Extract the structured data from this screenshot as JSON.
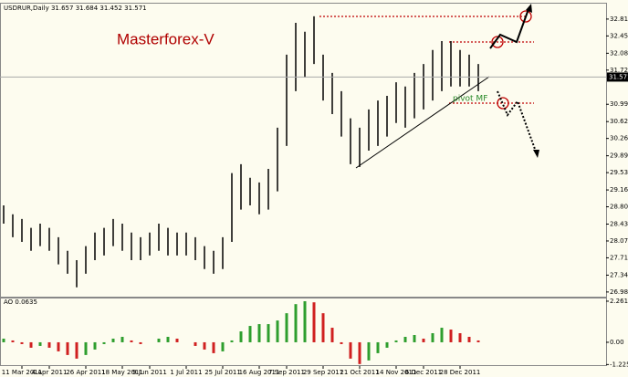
{
  "chart_data": [
    {
      "type": "ohlc",
      "header": "USDRUR,Daily  31.657 31.684 31.452 31.571",
      "title": "Masterforex-V",
      "annotation": "pivot MF",
      "categories": [
        null,
        null,
        "11 Mar 2011",
        null,
        null,
        "4 Apr 2011",
        null,
        null,
        null,
        "26 Apr 2011",
        null,
        null,
        null,
        "18 May 2011",
        null,
        null,
        "9 Jun 2011",
        null,
        null,
        null,
        "1 Jul 2011",
        null,
        null,
        null,
        "25 Jul 2011",
        null,
        null,
        null,
        "16 Aug 2011",
        null,
        null,
        "7 Sep 2011",
        null,
        null,
        null,
        "29 Sep 2011",
        null,
        null,
        null,
        "21 Oct 2011",
        null,
        null,
        null,
        "14 Nov 2011",
        null,
        null,
        "6 Dec 2011",
        null,
        null,
        null,
        "28 Dec 2011",
        null,
        null
      ],
      "series": [
        {
          "name": "high",
          "color": "#000000",
          "values": [
            28.83,
            28.64,
            28.54,
            28.35,
            28.44,
            28.35,
            28.15,
            27.86,
            27.66,
            27.96,
            28.25,
            28.35,
            28.54,
            28.44,
            28.25,
            28.15,
            28.25,
            28.44,
            28.35,
            28.25,
            28.25,
            28.15,
            27.96,
            27.86,
            28.15,
            29.52,
            29.71,
            29.42,
            29.32,
            29.61,
            30.49,
            32.05,
            32.73,
            32.54,
            32.87,
            32.05,
            31.66,
            31.27,
            30.69,
            30.49,
            30.88,
            31.07,
            31.17,
            31.46,
            31.37,
            31.66,
            31.85,
            32.15,
            32.34,
            32.34,
            32.15,
            32.05,
            31.85
          ]
        },
        {
          "name": "low",
          "color": "#000000",
          "values": [
            28.44,
            28.15,
            28.05,
            27.86,
            27.96,
            27.86,
            27.57,
            27.37,
            27.08,
            27.37,
            27.66,
            27.76,
            27.96,
            27.86,
            27.66,
            27.66,
            27.76,
            27.86,
            27.76,
            27.76,
            27.76,
            27.66,
            27.47,
            27.37,
            27.47,
            28.05,
            28.74,
            28.83,
            28.64,
            28.74,
            29.13,
            30.1,
            31.27,
            31.56,
            31.85,
            31.07,
            30.78,
            30.3,
            29.71,
            29.65,
            30.0,
            30.1,
            30.3,
            30.59,
            30.49,
            30.69,
            30.88,
            31.07,
            31.27,
            31.37,
            31.37,
            31.37,
            31.27
          ]
        }
      ],
      "last": 31.571,
      "ylim": [
        26.88,
        33.12
      ],
      "yticks": [
        {
          "value": 32.81,
          "label": "32.810"
        },
        {
          "value": 32.45,
          "label": "32.450"
        },
        {
          "value": 32.08,
          "label": "32.080"
        },
        {
          "value": 31.72,
          "label": "31.720"
        },
        {
          "value": 30.99,
          "label": "30.990"
        },
        {
          "value": 30.62,
          "label": "30.620"
        },
        {
          "value": 30.26,
          "label": "30.260"
        },
        {
          "value": 29.89,
          "label": "29.890"
        },
        {
          "value": 29.53,
          "label": "29.530"
        },
        {
          "value": 29.16,
          "label": "29.160"
        },
        {
          "value": 28.8,
          "label": "28.800"
        },
        {
          "value": 28.43,
          "label": "28.430"
        },
        {
          "value": 28.07,
          "label": "28.070"
        },
        {
          "value": 27.71,
          "label": "27.710"
        },
        {
          "value": 27.34,
          "label": "27.340"
        },
        {
          "value": 26.98,
          "label": "26.980"
        }
      ]
    },
    {
      "type": "bar",
      "header": "AO 0.0635",
      "values": [
        0.2,
        0.1,
        -0.1,
        -0.3,
        -0.2,
        -0.3,
        -0.5,
        -0.7,
        -0.9,
        -0.7,
        -0.4,
        -0.1,
        0.2,
        0.3,
        0.1,
        -0.1,
        0.0,
        0.2,
        0.3,
        0.2,
        0.0,
        -0.2,
        -0.4,
        -0.6,
        -0.5,
        0.1,
        0.6,
        0.9,
        1.0,
        1.0,
        1.2,
        1.6,
        2.1,
        2.26,
        2.2,
        1.6,
        0.8,
        -0.1,
        -0.9,
        -1.2,
        -1.0,
        -0.6,
        -0.3,
        0.1,
        0.3,
        0.4,
        0.2,
        0.5,
        0.8,
        0.7,
        0.5,
        0.3,
        0.1
      ],
      "up_color": "#2e9e2e",
      "down_color": "#d02020",
      "ylim": [
        -1.66,
        2.36
      ],
      "yticks": [
        2.2614,
        {
          "value": 0,
          "label": "0.00"
        },
        -1.2253
      ]
    }
  ]
}
